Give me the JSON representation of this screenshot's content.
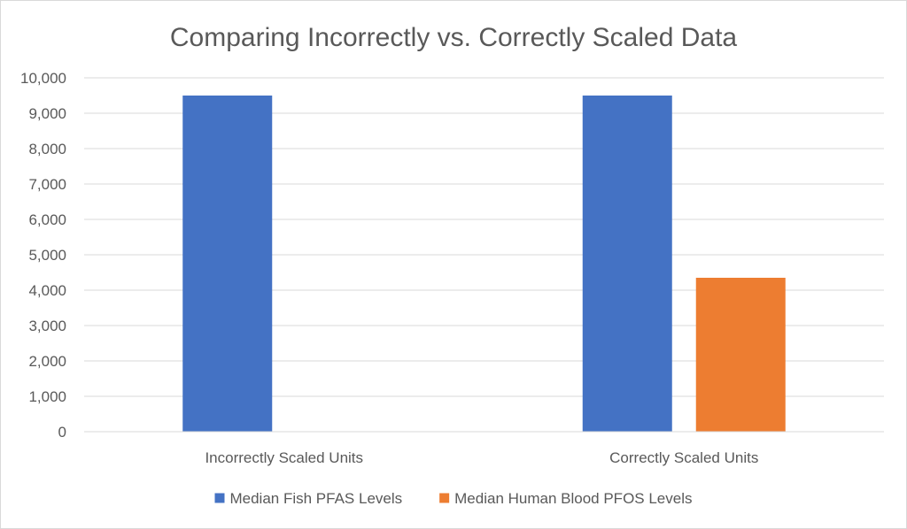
{
  "chart_data": {
    "type": "bar",
    "title": "Comparing Incorrectly vs. Correctly Scaled Data",
    "xlabel": "",
    "ylabel": "",
    "categories": [
      "Incorrectly Scaled Units",
      "Correctly Scaled Units"
    ],
    "series": [
      {
        "name": "Median Fish PFAS Levels",
        "color": "#4472C4",
        "values": [
          9500,
          9500
        ]
      },
      {
        "name": "Median Human Blood PFOS Levels",
        "color": "#ED7D31",
        "values": [
          0,
          4350
        ]
      }
    ],
    "ylim": [
      0,
      10000
    ],
    "yticks": [
      0,
      1000,
      2000,
      3000,
      4000,
      5000,
      6000,
      7000,
      8000,
      9000,
      10000
    ],
    "ytick_labels": [
      "0",
      "1,000",
      "2,000",
      "3,000",
      "4,000",
      "5,000",
      "6,000",
      "7,000",
      "8,000",
      "9,000",
      "10,000"
    ],
    "grid": true,
    "legend_position": "bottom"
  }
}
